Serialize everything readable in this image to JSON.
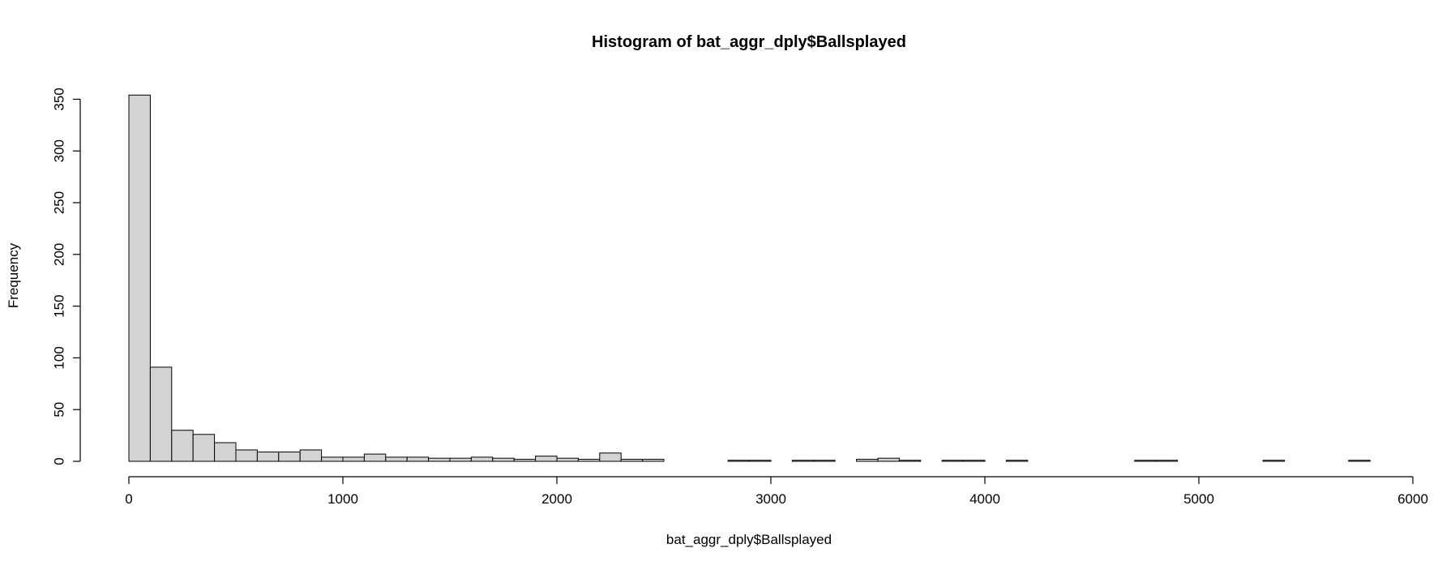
{
  "chart_data": {
    "type": "bar",
    "title": "Histogram of bat_aggr_dply$Ballsplayed",
    "xlabel": "bat_aggr_dply$Ballsplayed",
    "ylabel": "Frequency",
    "xlim": [
      0,
      6000
    ],
    "ylim": [
      0,
      355
    ],
    "x_ticks": [
      0,
      1000,
      2000,
      3000,
      4000,
      5000,
      6000
    ],
    "y_ticks": [
      0,
      50,
      100,
      150,
      200,
      250,
      300,
      350
    ],
    "bin_width": 100,
    "bin_start": 0,
    "values": [
      354,
      91,
      30,
      26,
      18,
      11,
      9,
      9,
      11,
      4,
      4,
      7,
      4,
      4,
      3,
      3,
      4,
      3,
      2,
      5,
      3,
      2,
      8,
      2,
      2,
      0,
      0,
      0,
      1,
      1,
      0,
      1,
      1,
      0,
      2,
      3,
      1,
      0,
      1,
      1,
      0,
      1,
      0,
      0,
      0,
      0,
      0,
      1,
      1,
      0,
      0,
      0,
      0,
      1,
      0,
      0,
      0,
      1
    ],
    "grid": false,
    "colors": {
      "bar_fill": "#d3d3d3",
      "bar_stroke": "#000000"
    }
  }
}
